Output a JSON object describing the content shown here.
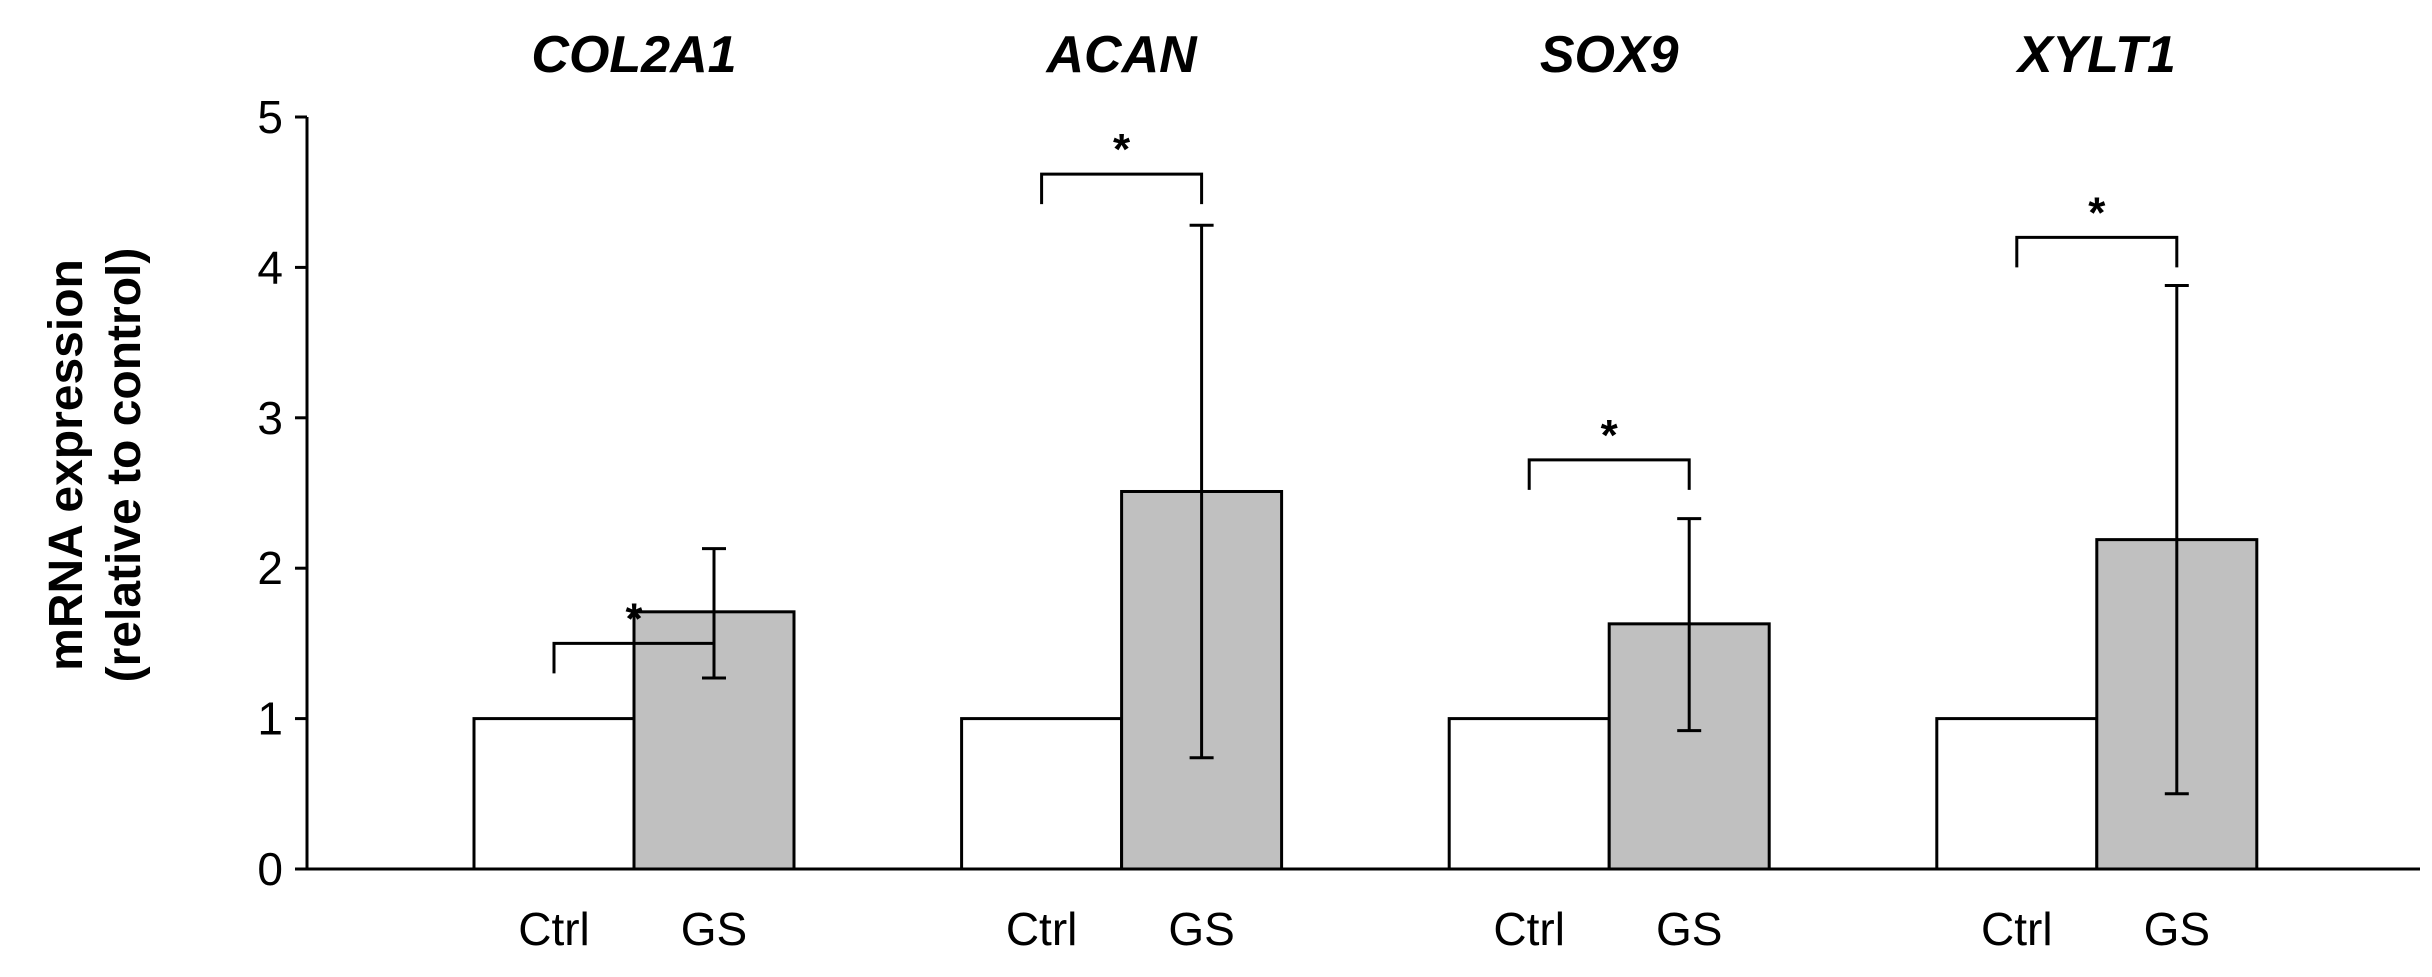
{
  "chart_data": {
    "type": "bar",
    "ylabel_lines": [
      "mRNA expression",
      "(relative to control)"
    ],
    "ylim": [
      0,
      5
    ],
    "y_ticks": [
      "0",
      "1",
      "2",
      "3",
      "4",
      "5"
    ],
    "groups": [
      {
        "gene": "COL2A1",
        "categories": [
          "Ctrl",
          "GS"
        ],
        "values": [
          1.0,
          1.71
        ],
        "errors": [
          null,
          [
            1.27,
            2.13
          ]
        ],
        "significance": "*",
        "sig_level": 1.5
      },
      {
        "gene": "ACAN",
        "categories": [
          "Ctrl",
          "GS"
        ],
        "values": [
          1.0,
          2.51
        ],
        "errors": [
          null,
          [
            0.74,
            4.28
          ]
        ],
        "significance": "*",
        "sig_level": 4.62
      },
      {
        "gene": "SOX9",
        "categories": [
          "Ctrl",
          "GS"
        ],
        "values": [
          1.0,
          1.63
        ],
        "errors": [
          null,
          [
            0.92,
            2.33
          ]
        ],
        "significance": "*",
        "sig_level": 2.72
      },
      {
        "gene": "XYLT1",
        "categories": [
          "Ctrl",
          "GS"
        ],
        "values": [
          1.0,
          2.19
        ],
        "errors": [
          null,
          [
            0.5,
            3.88
          ]
        ],
        "significance": "*",
        "sig_level": 4.2
      }
    ],
    "series_colors": {
      "Ctrl": "#ffffff",
      "GS": "#c0c0c0"
    }
  }
}
